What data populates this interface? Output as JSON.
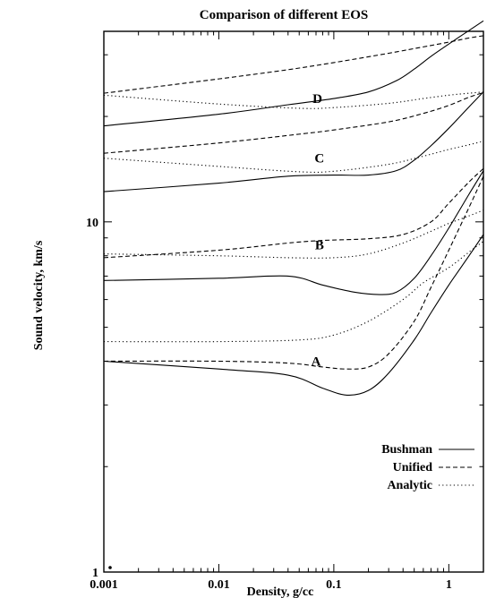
{
  "chart_data": {
    "type": "line",
    "title": "Comparison of different EOS",
    "xlabel": "Density, g/cc",
    "ylabel": "Sound velocity, km/s",
    "x_scale": "log",
    "y_scale": "log",
    "xlim": [
      0.001,
      2
    ],
    "ylim": [
      1,
      35
    ],
    "x_ticks": [
      {
        "value": 0.001,
        "label": "0.001"
      },
      {
        "value": 0.01,
        "label": "0.01"
      },
      {
        "value": 0.1,
        "label": "0.1"
      },
      {
        "value": 1,
        "label": "1"
      }
    ],
    "y_ticks": [
      {
        "value": 1,
        "label": "1"
      },
      {
        "value": 10,
        "label": "10"
      }
    ],
    "grid": false,
    "legend_position": "bottom-right",
    "legend": [
      {
        "name": "Bushman",
        "style": "solid"
      },
      {
        "name": "Unified",
        "style": "dashed"
      },
      {
        "name": "Analytic",
        "style": "dotted"
      }
    ],
    "curve_labels": [
      {
        "text": "A",
        "x": 0.07,
        "y": 4.0
      },
      {
        "text": "B",
        "x": 0.075,
        "y": 8.6
      },
      {
        "text": "C",
        "x": 0.075,
        "y": 15.2
      },
      {
        "text": "D",
        "x": 0.072,
        "y": 22.5
      }
    ],
    "series": [
      {
        "group": "A",
        "style": "solid",
        "points": [
          [
            0.001,
            4.0
          ],
          [
            0.01,
            3.8
          ],
          [
            0.04,
            3.65
          ],
          [
            0.08,
            3.35
          ],
          [
            0.13,
            3.2
          ],
          [
            0.2,
            3.3
          ],
          [
            0.3,
            3.7
          ],
          [
            0.5,
            4.6
          ],
          [
            0.7,
            5.5
          ],
          [
            1.0,
            6.6
          ],
          [
            1.5,
            8.0
          ],
          [
            2.0,
            9.2
          ]
        ]
      },
      {
        "group": "A",
        "style": "dashed",
        "points": [
          [
            0.001,
            4.0
          ],
          [
            0.01,
            4.0
          ],
          [
            0.04,
            3.95
          ],
          [
            0.08,
            3.85
          ],
          [
            0.13,
            3.8
          ],
          [
            0.2,
            3.85
          ],
          [
            0.3,
            4.2
          ],
          [
            0.5,
            5.2
          ],
          [
            0.7,
            6.5
          ],
          [
            1.0,
            8.3
          ],
          [
            1.5,
            11.0
          ],
          [
            2.0,
            13.5
          ]
        ]
      },
      {
        "group": "A",
        "style": "dotted",
        "points": [
          [
            0.001,
            4.55
          ],
          [
            0.01,
            4.55
          ],
          [
            0.05,
            4.6
          ],
          [
            0.1,
            4.75
          ],
          [
            0.2,
            5.2
          ],
          [
            0.4,
            6.0
          ],
          [
            0.6,
            6.7
          ],
          [
            1.0,
            7.4
          ],
          [
            1.5,
            8.2
          ],
          [
            2.0,
            8.8
          ]
        ]
      },
      {
        "group": "B",
        "style": "solid",
        "points": [
          [
            0.001,
            6.8
          ],
          [
            0.01,
            6.9
          ],
          [
            0.04,
            7.0
          ],
          [
            0.08,
            6.6
          ],
          [
            0.15,
            6.3
          ],
          [
            0.25,
            6.2
          ],
          [
            0.35,
            6.3
          ],
          [
            0.5,
            6.9
          ],
          [
            0.7,
            8.0
          ],
          [
            1.0,
            9.6
          ],
          [
            1.5,
            12.0
          ],
          [
            2.0,
            14.0
          ]
        ]
      },
      {
        "group": "B",
        "style": "dashed",
        "points": [
          [
            0.001,
            7.9
          ],
          [
            0.01,
            8.3
          ],
          [
            0.04,
            8.7
          ],
          [
            0.08,
            8.85
          ],
          [
            0.2,
            8.95
          ],
          [
            0.4,
            9.2
          ],
          [
            0.7,
            10.0
          ],
          [
            1.0,
            11.3
          ],
          [
            1.5,
            13.0
          ],
          [
            2.0,
            14.2
          ]
        ]
      },
      {
        "group": "B",
        "style": "dotted",
        "points": [
          [
            0.001,
            8.1
          ],
          [
            0.01,
            8.0
          ],
          [
            0.04,
            7.9
          ],
          [
            0.1,
            7.9
          ],
          [
            0.2,
            8.1
          ],
          [
            0.4,
            8.7
          ],
          [
            0.7,
            9.4
          ],
          [
            1.0,
            9.9
          ],
          [
            1.5,
            10.4
          ],
          [
            2.0,
            10.8
          ]
        ]
      },
      {
        "group": "C",
        "style": "solid",
        "points": [
          [
            0.001,
            12.2
          ],
          [
            0.01,
            12.9
          ],
          [
            0.04,
            13.5
          ],
          [
            0.1,
            13.6
          ],
          [
            0.2,
            13.6
          ],
          [
            0.35,
            14.0
          ],
          [
            0.5,
            15.0
          ],
          [
            0.7,
            16.5
          ],
          [
            1.0,
            18.5
          ],
          [
            1.5,
            21.3
          ],
          [
            2.0,
            23.5
          ]
        ]
      },
      {
        "group": "C",
        "style": "dashed",
        "points": [
          [
            0.001,
            15.7
          ],
          [
            0.01,
            16.8
          ],
          [
            0.05,
            17.8
          ],
          [
            0.1,
            18.3
          ],
          [
            0.3,
            19.3
          ],
          [
            0.6,
            20.4
          ],
          [
            1.0,
            21.5
          ],
          [
            1.5,
            22.7
          ],
          [
            2.0,
            23.4
          ]
        ]
      },
      {
        "group": "C",
        "style": "dotted",
        "points": [
          [
            0.001,
            15.2
          ],
          [
            0.01,
            14.4
          ],
          [
            0.05,
            13.9
          ],
          [
            0.1,
            13.95
          ],
          [
            0.3,
            14.6
          ],
          [
            0.6,
            15.4
          ],
          [
            1.0,
            16.1
          ],
          [
            1.5,
            16.6
          ],
          [
            2.0,
            17.0
          ]
        ]
      },
      {
        "group": "D",
        "style": "solid",
        "points": [
          [
            0.001,
            18.8
          ],
          [
            0.01,
            20.3
          ],
          [
            0.04,
            21.6
          ],
          [
            0.1,
            22.5
          ],
          [
            0.2,
            23.5
          ],
          [
            0.35,
            25.3
          ],
          [
            0.5,
            27.3
          ],
          [
            0.7,
            29.7
          ],
          [
            1.0,
            32.2
          ],
          [
            1.5,
            35.2
          ],
          [
            2.0,
            37.5
          ]
        ]
      },
      {
        "group": "D",
        "style": "dashed",
        "points": [
          [
            0.001,
            23.3
          ],
          [
            0.01,
            25.6
          ],
          [
            0.04,
            27.2
          ],
          [
            0.1,
            28.5
          ],
          [
            0.3,
            30.3
          ],
          [
            0.6,
            31.6
          ],
          [
            1.0,
            32.6
          ],
          [
            1.5,
            33.5
          ],
          [
            2.0,
            34.0
          ]
        ]
      },
      {
        "group": "D",
        "style": "dotted",
        "points": [
          [
            0.001,
            23.0
          ],
          [
            0.01,
            21.7
          ],
          [
            0.05,
            21.1
          ],
          [
            0.1,
            21.2
          ],
          [
            0.3,
            21.8
          ],
          [
            0.6,
            22.5
          ],
          [
            1.0,
            23.0
          ],
          [
            1.5,
            23.3
          ],
          [
            2.0,
            23.5
          ]
        ]
      }
    ]
  }
}
